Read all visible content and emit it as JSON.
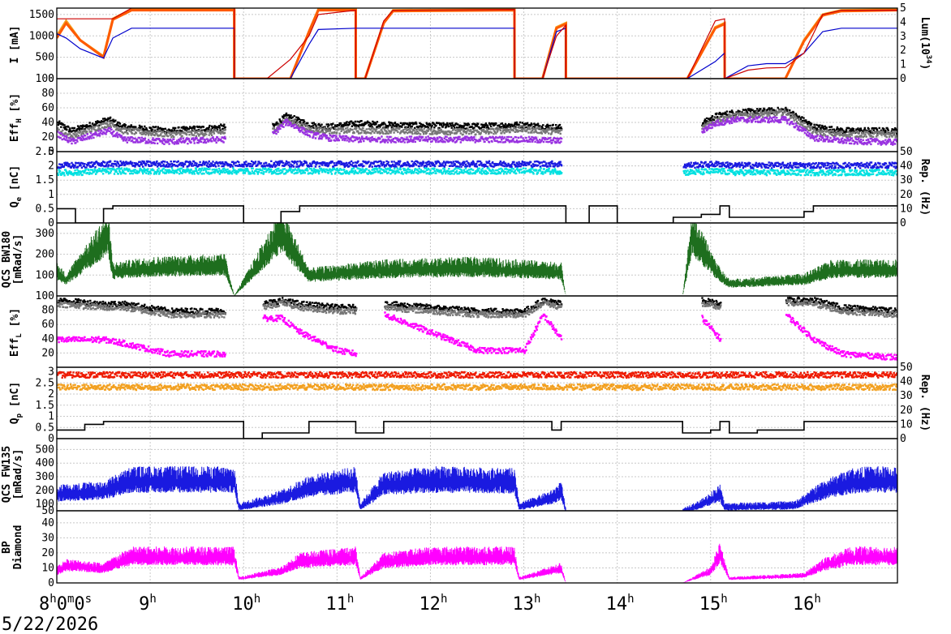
{
  "date": "5/22/2026",
  "time_labels": [
    {
      "hour": 8,
      "main": "8",
      "sup": "h",
      "rest": "0",
      "sup2": "m",
      "rest2": "0",
      "sup3": "s"
    },
    {
      "hour": 9,
      "main": "9",
      "sup": "h"
    },
    {
      "hour": 10,
      "main": "10",
      "sup": "h"
    },
    {
      "hour": 11,
      "main": "11",
      "sup": "h"
    },
    {
      "hour": 12,
      "main": "12",
      "sup": "h"
    },
    {
      "hour": 13,
      "main": "13",
      "sup": "h"
    },
    {
      "hour": 14,
      "main": "14",
      "sup": "h"
    },
    {
      "hour": 15,
      "main": "15",
      "sup": "h"
    },
    {
      "hour": 16,
      "main": "16",
      "sup": "h"
    }
  ],
  "chart_data": [
    {
      "type": "line",
      "id": "current",
      "ylabel": "I [mA]",
      "ylim": [
        0,
        1650
      ],
      "yticks": [
        0,
        500,
        1000,
        1500
      ],
      "y2label": "Lum(10^34)",
      "y2lim": [
        0,
        5
      ],
      "y2ticks": [
        0,
        1,
        2,
        3,
        4,
        5
      ],
      "x": [
        8.0,
        8.1,
        8.25,
        8.5,
        8.6,
        8.8,
        9.9,
        9.9001,
        10.25,
        10.5,
        10.7,
        10.8,
        11.2,
        11.2001,
        11.3,
        11.5,
        11.6,
        12.9,
        12.9001,
        13.2,
        13.35,
        13.45,
        13.4501,
        14.75,
        15.05,
        15.15,
        15.1501,
        15.4,
        15.6,
        15.8,
        16.0,
        16.2,
        16.4,
        17.0
      ],
      "series": [
        {
          "color": "#f2a020",
          "values": [
            1000,
            1350,
            900,
            520,
            1400,
            1620,
            1620,
            0,
            0,
            0,
            1100,
            1620,
            1620,
            0,
            0,
            1300,
            1600,
            1620,
            0,
            0,
            1200,
            1300,
            0,
            0,
            1200,
            1300,
            0,
            0,
            0,
            0,
            900,
            1500,
            1600,
            1620
          ]
        },
        {
          "color": "#ff5a00",
          "values": [
            950,
            1300,
            900,
            500,
            1380,
            1600,
            1600,
            0,
            0,
            0,
            1100,
            1600,
            1600,
            0,
            0,
            1300,
            1580,
            1600,
            0,
            0,
            1180,
            1280,
            0,
            0,
            1180,
            1280,
            0,
            0,
            0,
            0,
            880,
            1480,
            1580,
            1600
          ]
        },
        {
          "color": "#0000cc",
          "values": [
            1050,
            950,
            700,
            480,
            950,
            1180,
            1180,
            0,
            0,
            0,
            800,
            1150,
            1180,
            1180,
            1180,
            1180,
            1180,
            1180,
            0,
            0,
            1100,
            1180,
            0,
            0,
            400,
            600,
            0,
            300,
            350,
            350,
            600,
            1100,
            1180,
            1180
          ]
        },
        {
          "color": "#cc0000",
          "values": [
            1400,
            1400,
            1400,
            1400,
            1400,
            1650,
            1650,
            0,
            0,
            450,
            1000,
            1500,
            1600,
            0,
            0,
            1350,
            1600,
            1620,
            0,
            0,
            1000,
            1250,
            0,
            0,
            1350,
            1400,
            0,
            200,
            250,
            260,
            600,
            1500,
            1600,
            1600
          ]
        }
      ]
    },
    {
      "type": "scatter",
      "id": "effh",
      "ylabel": "EffH [%]",
      "ylim": [
        0,
        100
      ],
      "yticks": [
        0,
        20,
        40,
        60,
        80,
        100
      ],
      "x": [
        8.0,
        8.15,
        8.55,
        8.7,
        9.2,
        9.8,
        9.9,
        10.3,
        10.45,
        10.7,
        10.9,
        11.2,
        11.5,
        12.5,
        12.95,
        13.4,
        14.7,
        14.9,
        15.05,
        15.25,
        15.8,
        16.1,
        16.4,
        17.0
      ],
      "series": [
        {
          "color": "#000000",
          "values": [
            40,
            30,
            45,
            35,
            30,
            35,
            null,
            35,
            50,
            38,
            35,
            40,
            38,
            36,
            38,
            34,
            null,
            40,
            50,
            55,
            58,
            35,
            30,
            30
          ]
        },
        {
          "color": "#777777",
          "values": [
            30,
            22,
            40,
            30,
            25,
            28,
            null,
            30,
            45,
            32,
            30,
            30,
            30,
            28,
            32,
            28,
            null,
            35,
            45,
            50,
            55,
            28,
            25,
            25
          ]
        },
        {
          "color": "#9932e0",
          "values": [
            25,
            15,
            30,
            18,
            15,
            18,
            null,
            25,
            42,
            25,
            20,
            18,
            18,
            18,
            18,
            16,
            null,
            30,
            40,
            45,
            45,
            20,
            16,
            14
          ]
        }
      ]
    },
    {
      "type": "scatter",
      "id": "qe",
      "ylabel": "Qe [nC]",
      "ylim": [
        0,
        2.5
      ],
      "yticks": [
        0,
        0.5,
        1,
        1.5,
        2,
        2.5
      ],
      "y2label": "Rep. (Hz)",
      "y2lim": [
        0,
        50
      ],
      "y2ticks": [
        0,
        10,
        20,
        30,
        40,
        50
      ],
      "x": [
        8.0,
        8.2,
        8.5,
        9.9,
        10.3,
        10.6,
        13.4,
        13.9,
        14.1,
        14.7,
        15.1,
        15.2,
        16.0,
        17.0
      ],
      "series": [
        {
          "color": "#1a1ae0",
          "values": [
            2.05,
            2.05,
            2.1,
            2.1,
            2.1,
            2.1,
            2.1,
            null,
            null,
            2.05,
            2.1,
            2.05,
            2.05,
            2.05
          ]
        },
        {
          "color": "#00e0e0",
          "values": [
            1.8,
            1.8,
            1.85,
            1.85,
            1.85,
            1.85,
            1.85,
            null,
            null,
            1.8,
            1.85,
            1.8,
            1.8,
            1.8
          ]
        }
      ],
      "rep_hz": {
        "x": [
          8.0,
          8.2,
          8.5,
          8.6,
          9.9,
          10.0,
          10.4,
          10.6,
          11.0,
          13.0,
          13.45,
          13.7,
          14.0,
          14.6,
          14.9,
          15.1,
          15.2,
          16.0,
          16.1,
          17.0
        ],
        "values": [
          10,
          0,
          10,
          12,
          12,
          0,
          8,
          12,
          12,
          12,
          0,
          12,
          0,
          4,
          6,
          12,
          4,
          8,
          12,
          12
        ],
        "color": "#000000"
      }
    },
    {
      "type": "line",
      "id": "qcs-bw180",
      "ylabel": "QCS BW180 [mRad/s]",
      "ylim": [
        0,
        350
      ],
      "yticks": [
        100,
        200,
        300
      ],
      "x": [
        8.0,
        8.1,
        8.55,
        8.6,
        9.0,
        9.8,
        9.9,
        10.3,
        10.4,
        10.7,
        11.5,
        12.5,
        13.4,
        13.45,
        14.7,
        14.8,
        15.1,
        15.2,
        16.0,
        16.3,
        17.0
      ],
      "series": [
        {
          "color": "#1e6e1e",
          "values": [
            120,
            80,
            300,
            120,
            140,
            150,
            0,
            250,
            320,
            100,
            130,
            140,
            120,
            0,
            0,
            300,
            100,
            60,
            80,
            130,
            130
          ]
        }
      ]
    },
    {
      "type": "scatter",
      "id": "effl",
      "ylabel": "EffL [%]",
      "ylim": [
        0,
        100
      ],
      "yticks": [
        20,
        40,
        60,
        80,
        100
      ],
      "x": [
        8.0,
        8.5,
        8.7,
        9.2,
        9.8,
        9.9,
        10.2,
        10.4,
        10.6,
        11.0,
        11.2,
        11.3,
        11.5,
        12.5,
        13.0,
        13.2,
        13.4,
        14.7,
        14.9,
        15.1,
        15.2,
        15.8,
        16.1,
        16.4,
        17.0
      ],
      "series": [
        {
          "color": "#000000",
          "values": [
            95,
            90,
            90,
            80,
            80,
            null,
            90,
            95,
            90,
            85,
            85,
            null,
            90,
            80,
            80,
            95,
            90,
            null,
            95,
            90,
            null,
            95,
            95,
            85,
            80
          ]
        },
        {
          "color": "#777777",
          "values": [
            90,
            85,
            85,
            75,
            75,
            null,
            85,
            92,
            85,
            80,
            80,
            null,
            85,
            75,
            75,
            92,
            85,
            null,
            90,
            85,
            null,
            92,
            90,
            80,
            75
          ]
        },
        {
          "color": "#ff00ff",
          "values": [
            40,
            40,
            35,
            20,
            20,
            null,
            70,
            70,
            50,
            25,
            20,
            null,
            75,
            25,
            25,
            75,
            40,
            null,
            70,
            40,
            null,
            75,
            40,
            20,
            15
          ]
        }
      ]
    },
    {
      "type": "scatter",
      "id": "qp",
      "ylabel": "Qp [nC]",
      "ylim": [
        0,
        3.2
      ],
      "yticks": [
        0,
        0.5,
        1,
        1.5,
        2,
        2.5,
        3
      ],
      "y2label": "Rep. (Hz)",
      "y2lim": [
        0,
        50
      ],
      "y2ticks": [
        0,
        10,
        20,
        30,
        40,
        50
      ],
      "x": [
        8.0,
        9.9,
        10.2,
        11.2,
        11.3,
        12.9,
        13.1,
        13.4,
        14.7,
        15.2,
        15.3,
        17.0
      ],
      "series": [
        {
          "color": "#ee1a00",
          "values": [
            2.9,
            2.9,
            2.9,
            2.9,
            2.9,
            2.9,
            2.9,
            2.9,
            2.9,
            2.9,
            2.9,
            2.9
          ]
        },
        {
          "color": "#f2a020",
          "values": [
            2.35,
            2.35,
            2.35,
            2.35,
            2.35,
            2.35,
            2.35,
            2.35,
            2.35,
            2.35,
            2.35,
            2.35
          ]
        }
      ],
      "rep_hz": {
        "x": [
          8.0,
          8.3,
          8.5,
          9.9,
          10.0,
          10.2,
          10.7,
          11.0,
          11.2,
          11.5,
          12.5,
          13.0,
          13.3,
          13.4,
          14.7,
          15.0,
          15.1,
          15.2,
          15.5,
          16.0,
          17.0
        ],
        "values": [
          6,
          10,
          12,
          12,
          0,
          4,
          12,
          12,
          4,
          12,
          12,
          12,
          6,
          12,
          4,
          6,
          12,
          4,
          6,
          12,
          12
        ],
        "color": "#000000"
      }
    },
    {
      "type": "line",
      "id": "qcs-fw135",
      "ylabel": "QCS FW135 [mRad/s]",
      "ylim": [
        50,
        580
      ],
      "yticks": [
        50,
        100,
        200,
        300,
        400,
        500
      ],
      "x": [
        8.0,
        8.5,
        8.8,
        9.9,
        9.95,
        10.4,
        10.7,
        11.2,
        11.25,
        11.5,
        12.0,
        12.9,
        12.95,
        13.3,
        13.4,
        13.45,
        14.7,
        14.9,
        15.1,
        15.15,
        15.9,
        16.2,
        16.5,
        16.7,
        17.0
      ],
      "series": [
        {
          "color": "#1a1ae0",
          "values": [
            180,
            200,
            280,
            280,
            80,
            150,
            230,
            280,
            80,
            250,
            280,
            270,
            80,
            150,
            200,
            50,
            50,
            100,
            180,
            80,
            90,
            200,
            270,
            280,
            280
          ]
        }
      ]
    },
    {
      "type": "line",
      "id": "bp-diamond",
      "ylabel": "BP Diamond",
      "ylim": [
        0,
        48
      ],
      "yticks": [
        0,
        10,
        20,
        30,
        40
      ],
      "x": [
        8.0,
        8.1,
        8.5,
        8.8,
        9.9,
        9.95,
        10.4,
        10.6,
        11.2,
        11.25,
        11.5,
        12.0,
        12.9,
        12.95,
        13.4,
        13.45,
        14.7,
        15.0,
        15.1,
        15.2,
        16.0,
        16.2,
        16.5,
        17.0
      ],
      "series": [
        {
          "color": "#ff00ff",
          "values": [
            8,
            12,
            10,
            18,
            18,
            3,
            8,
            15,
            18,
            3,
            15,
            18,
            18,
            3,
            10,
            0,
            0,
            8,
            20,
            3,
            5,
            12,
            18,
            18
          ]
        }
      ]
    }
  ]
}
